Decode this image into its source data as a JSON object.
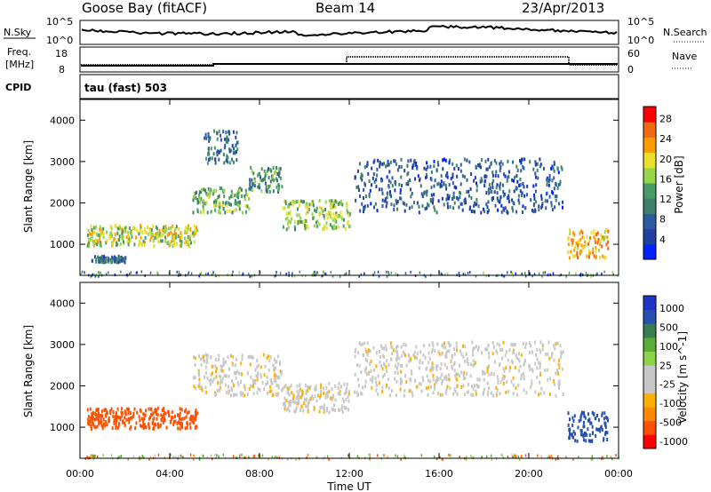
{
  "header": {
    "station": "Goose Bay (fitACF)",
    "beam": "Beam 14",
    "date": "23/Apr/2013"
  },
  "noise_panel": {
    "left_label": "N.Sky",
    "left_ticks": [
      "10^5",
      "10^0"
    ],
    "right_label": "N.Search",
    "right_ticks": [
      "10^5",
      "10^0"
    ]
  },
  "freq_panel": {
    "left_label_top": "Freq.",
    "left_label_unit": "[MHz]",
    "left_ticks": [
      "18",
      "8"
    ],
    "right_label": "Nave",
    "right_ticks": [
      "60",
      "0"
    ]
  },
  "cpid_panel": {
    "label": "CPID",
    "text": "tau (fast) 503"
  },
  "colors": {
    "power_scale": [
      "#0022ff",
      "#1f3fa3",
      "#2e5aa0",
      "#3d7f6a",
      "#4a9a68",
      "#96d449",
      "#e9e02a",
      "#ff9c00",
      "#f06a10",
      "#ff0000"
    ],
    "velocity_scale": [
      "#1d35c8",
      "#2850b0",
      "#3a7d4e",
      "#5cae3c",
      "#8cd44a",
      "#c8c8c8",
      "#c8c8c8",
      "#ffb000",
      "#ff8a00",
      "#ff5000",
      "#ff0000"
    ]
  },
  "chart_data": [
    {
      "type": "heatmap",
      "name": "power",
      "xlabel": "",
      "ylabel": "Slant Range [km]",
      "x_ticks": [
        "00:00",
        "04:00",
        "08:00",
        "12:00",
        "16:00",
        "20:00",
        "00:00"
      ],
      "y_ticks": [
        "1000",
        "2000",
        "3000",
        "4000"
      ],
      "ylim": [
        250,
        4500
      ],
      "colorbar": {
        "label": "Power [dB]",
        "ticks": [
          "4",
          "8",
          "12",
          "16",
          "20",
          "24",
          "28"
        ],
        "range": [
          0,
          30
        ]
      },
      "scatter_bands": [
        {
          "t_start": 0.5,
          "t_end": 2.0,
          "range_start": 600,
          "range_end": 750,
          "power": 8
        },
        {
          "t_start": 0.3,
          "t_end": 5.2,
          "range_start": 1000,
          "range_end": 1500,
          "power": 18
        },
        {
          "t_start": 5.0,
          "t_end": 7.5,
          "range_start": 1800,
          "range_end": 2400,
          "power": 14
        },
        {
          "t_start": 5.5,
          "t_end": 7.0,
          "range_start": 3000,
          "range_end": 3800,
          "power": 10
        },
        {
          "t_start": 7.5,
          "t_end": 9.0,
          "range_start": 2300,
          "range_end": 2900,
          "power": 12
        },
        {
          "t_start": 9.0,
          "t_end": 12.0,
          "range_start": 1400,
          "range_end": 2100,
          "power": 16
        },
        {
          "t_start": 12.2,
          "t_end": 21.5,
          "range_start": 1800,
          "range_end": 3100,
          "power": 7
        },
        {
          "t_start": 21.7,
          "t_end": 23.5,
          "range_start": 700,
          "range_end": 1400,
          "power": 22
        }
      ]
    },
    {
      "type": "heatmap",
      "name": "velocity",
      "xlabel": "Time UT",
      "ylabel": "Slant Range [km]",
      "x_ticks": [
        "00:00",
        "04:00",
        "08:00",
        "12:00",
        "16:00",
        "20:00",
        "00:00"
      ],
      "y_ticks": [
        "1000",
        "2000",
        "3000",
        "4000"
      ],
      "ylim": [
        250,
        4500
      ],
      "colorbar": {
        "label": "Velocity [m s^-1]",
        "ticks": [
          "1000",
          "500",
          "100",
          "25",
          "-25",
          "-100",
          "-500",
          "-1000"
        ]
      },
      "scatter_bands": [
        {
          "t_start": 0.3,
          "t_end": 5.2,
          "range_start": 1000,
          "range_end": 1500,
          "velocity": -300
        },
        {
          "t_start": 5.0,
          "t_end": 9.0,
          "range_start": 1800,
          "range_end": 2800,
          "velocity": 0
        },
        {
          "t_start": 9.0,
          "t_end": 12.0,
          "range_start": 1400,
          "range_end": 2100,
          "velocity": 0
        },
        {
          "t_start": 12.2,
          "t_end": 21.5,
          "range_start": 1800,
          "range_end": 3100,
          "velocity": 0
        },
        {
          "t_start": 21.7,
          "t_end": 23.5,
          "range_start": 700,
          "range_end": 1400,
          "velocity": 600
        }
      ]
    }
  ]
}
